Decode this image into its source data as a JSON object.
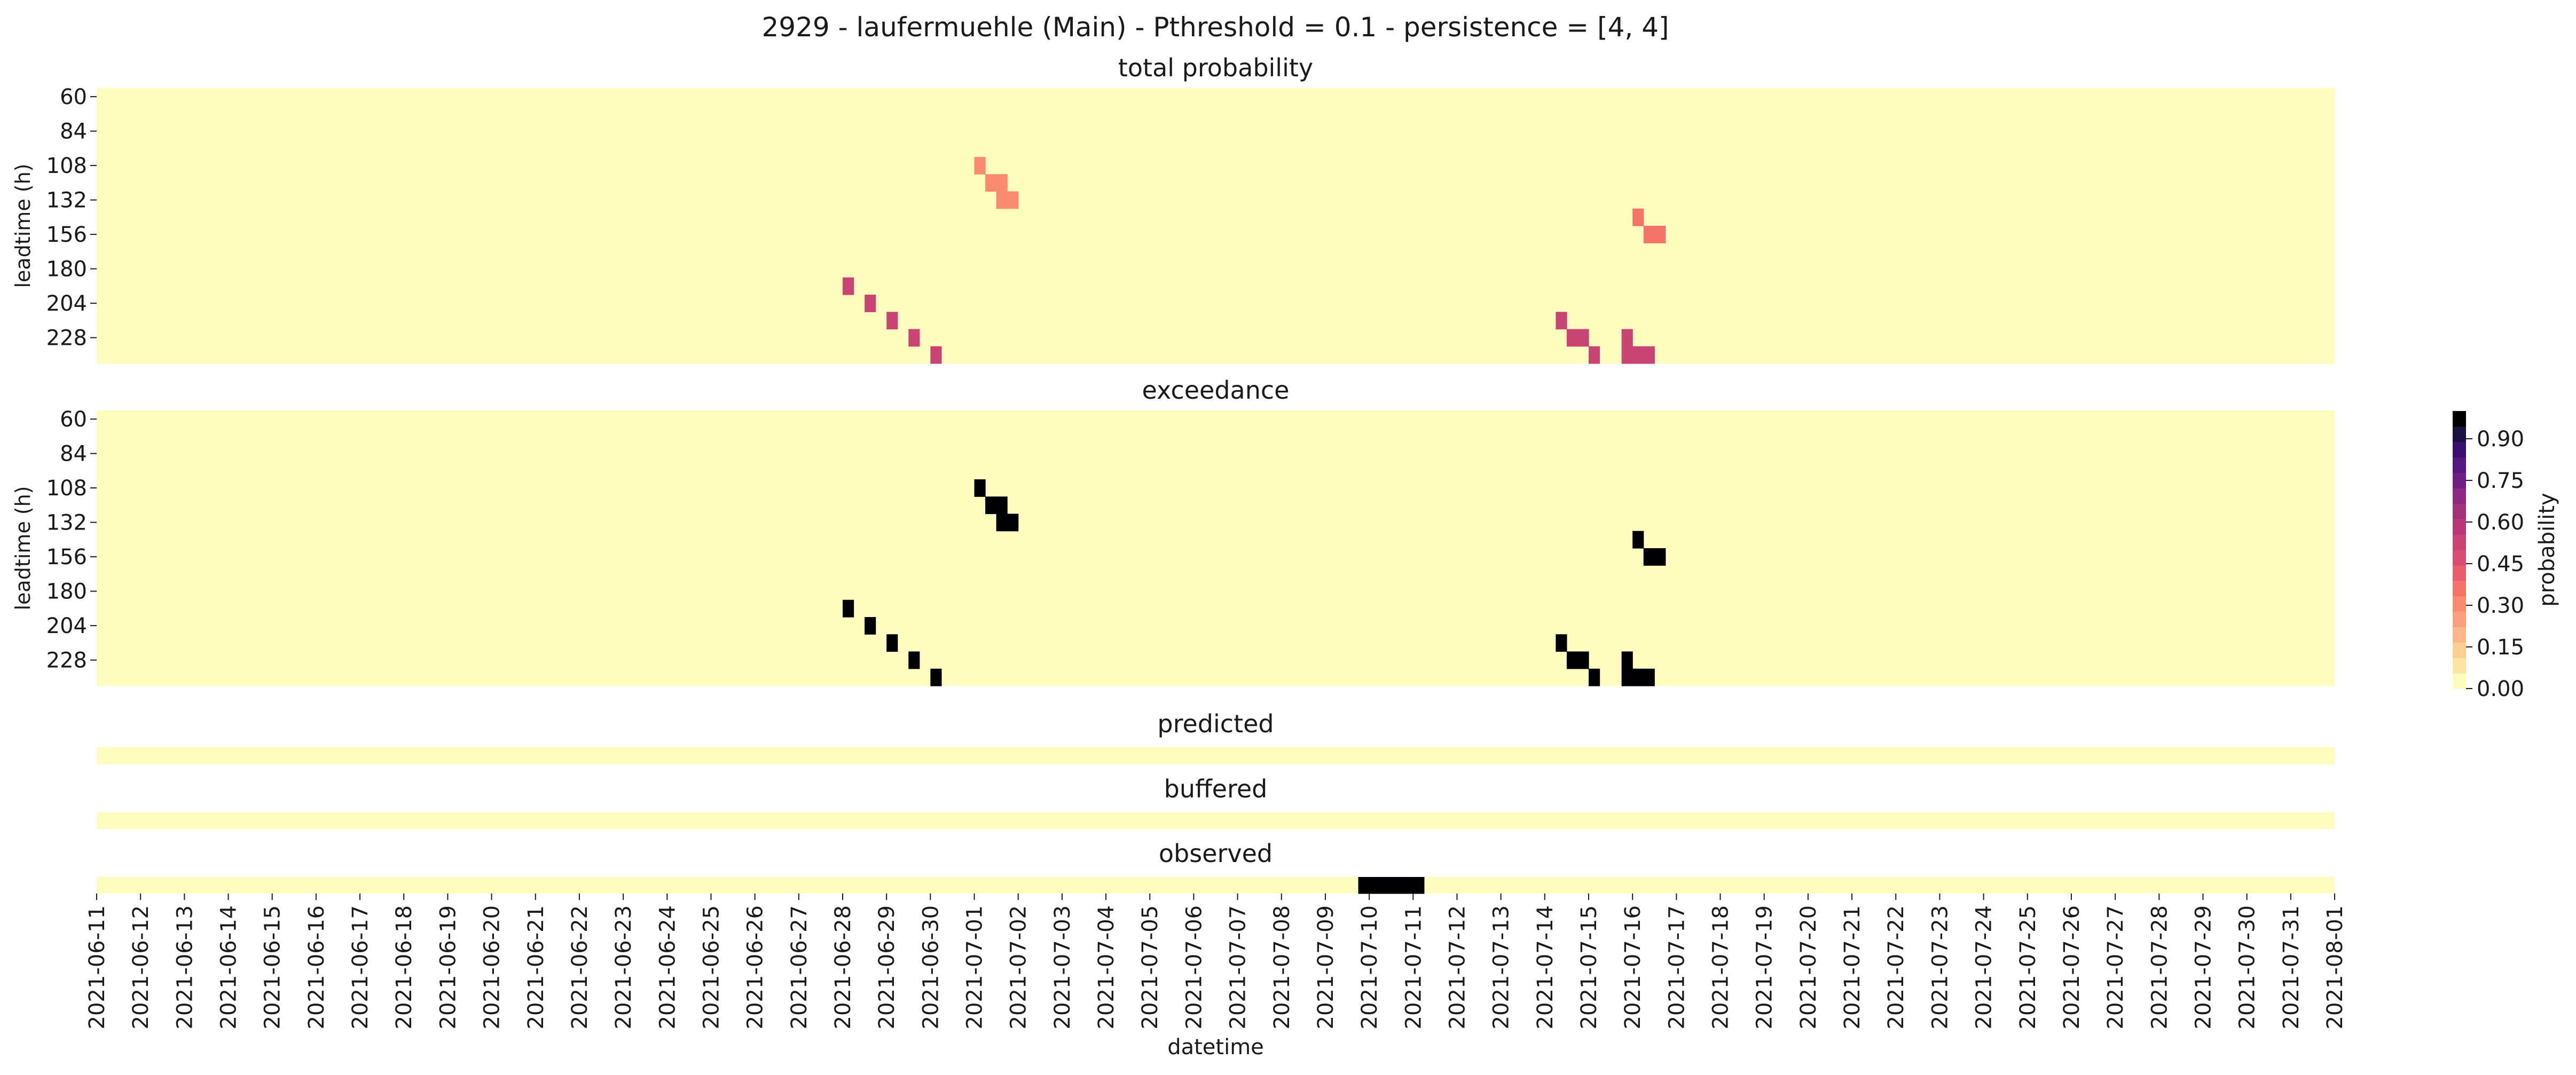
{
  "title": "2929 - laufermuehle (Main) - Pthreshold = 0.1 - persistence = [4, 4]",
  "chart_data": [
    {
      "type": "heatmap",
      "title": "total probability",
      "ylabel": "leadtime (h)",
      "yticks": [
        60,
        84,
        108,
        132,
        156,
        180,
        204,
        228
      ],
      "leadtimes": [
        60,
        72,
        84,
        96,
        108,
        120,
        132,
        144,
        156,
        168,
        180,
        192,
        204,
        216,
        228,
        240
      ],
      "background_value": 0.0,
      "cells": [
        {
          "date": "2021-06-25 00:00",
          "leadtime": 96,
          "value": 0.05
        },
        {
          "date": "2021-06-25 18:00",
          "leadtime": 84,
          "value": 0.05
        },
        {
          "date": "2021-06-26 12:00",
          "leadtime": 72,
          "value": 0.05
        },
        {
          "date": "2021-06-28 00:00",
          "leadtime": 192,
          "value": 0.55
        },
        {
          "date": "2021-06-28 12:00",
          "leadtime": 204,
          "value": 0.55
        },
        {
          "date": "2021-06-29 00:00",
          "leadtime": 216,
          "value": 0.55
        },
        {
          "date": "2021-06-29 12:00",
          "leadtime": 228,
          "value": 0.55
        },
        {
          "date": "2021-06-30 00:00",
          "leadtime": 240,
          "value": 0.55
        },
        {
          "date": "2021-07-01 00:00",
          "leadtime": 108,
          "value": 0.35
        },
        {
          "date": "2021-07-01 06:00",
          "leadtime": 120,
          "value": 0.35
        },
        {
          "date": "2021-07-01 12:00",
          "leadtime": 120,
          "value": 0.35
        },
        {
          "date": "2021-07-01 12:00",
          "leadtime": 132,
          "value": 0.35
        },
        {
          "date": "2021-07-01 18:00",
          "leadtime": 132,
          "value": 0.35
        },
        {
          "date": "2021-07-09 18:00",
          "leadtime": 96,
          "value": 0.05
        },
        {
          "date": "2021-07-10 00:00",
          "leadtime": 84,
          "value": 0.05
        },
        {
          "date": "2021-07-10 06:00",
          "leadtime": 84,
          "value": 0.05
        },
        {
          "date": "2021-07-10 00:00",
          "leadtime": 108,
          "value": 0.05
        },
        {
          "date": "2021-07-10 06:00",
          "leadtime": 96,
          "value": 0.05
        },
        {
          "date": "2021-07-10 12:00",
          "leadtime": 108,
          "value": 0.05
        },
        {
          "date": "2021-07-10 18:00",
          "leadtime": 108,
          "value": 0.05
        },
        {
          "date": "2021-07-10 00:00",
          "leadtime": 120,
          "value": 0.05
        },
        {
          "date": "2021-07-10 06:00",
          "leadtime": 120,
          "value": 0.05
        },
        {
          "date": "2021-07-10 12:00",
          "leadtime": 132,
          "value": 0.05
        },
        {
          "date": "2021-07-15 00:00",
          "leadtime": 96,
          "value": 0.05
        },
        {
          "date": "2021-07-15 06:00",
          "leadtime": 96,
          "value": 0.05
        },
        {
          "date": "2021-07-15 00:00",
          "leadtime": 108,
          "value": 0.05
        },
        {
          "date": "2021-07-15 06:00",
          "leadtime": 108,
          "value": 0.05
        },
        {
          "date": "2021-07-15 12:00",
          "leadtime": 108,
          "value": 0.05
        },
        {
          "date": "2021-07-15 06:00",
          "leadtime": 120,
          "value": 0.05
        },
        {
          "date": "2021-07-15 12:00",
          "leadtime": 132,
          "value": 0.05
        },
        {
          "date": "2021-07-15 18:00",
          "leadtime": 132,
          "value": 0.05
        },
        {
          "date": "2021-07-16 00:00",
          "leadtime": 144,
          "value": 0.4
        },
        {
          "date": "2021-07-16 06:00",
          "leadtime": 156,
          "value": 0.4
        },
        {
          "date": "2021-07-16 12:00",
          "leadtime": 156,
          "value": 0.4
        },
        {
          "date": "2021-07-14 18:00",
          "leadtime": 192,
          "value": 0.05
        },
        {
          "date": "2021-07-15 00:00",
          "leadtime": 204,
          "value": 0.05
        },
        {
          "date": "2021-07-15 06:00",
          "leadtime": 204,
          "value": 0.05
        },
        {
          "date": "2021-07-14 06:00",
          "leadtime": 216,
          "value": 0.55
        },
        {
          "date": "2021-07-14 12:00",
          "leadtime": 228,
          "value": 0.55
        },
        {
          "date": "2021-07-14 18:00",
          "leadtime": 228,
          "value": 0.55
        },
        {
          "date": "2021-07-15 00:00",
          "leadtime": 240,
          "value": 0.55
        },
        {
          "date": "2021-07-15 18:00",
          "leadtime": 228,
          "value": 0.55
        },
        {
          "date": "2021-07-15 18:00",
          "leadtime": 240,
          "value": 0.55
        },
        {
          "date": "2021-07-16 00:00",
          "leadtime": 240,
          "value": 0.55
        },
        {
          "date": "2021-07-16 06:00",
          "leadtime": 240,
          "value": 0.55
        }
      ]
    },
    {
      "type": "heatmap",
      "title": "exceedance",
      "ylabel": "leadtime (h)",
      "yticks": [
        60,
        84,
        108,
        132,
        156,
        180,
        204,
        228
      ],
      "leadtimes": [
        60,
        72,
        84,
        96,
        108,
        120,
        132,
        144,
        156,
        168,
        180,
        192,
        204,
        216,
        228,
        240
      ],
      "background_value": 0.0,
      "cells": [
        {
          "date": "2021-06-28 00:00",
          "leadtime": 192,
          "value": 1
        },
        {
          "date": "2021-06-28 12:00",
          "leadtime": 204,
          "value": 1
        },
        {
          "date": "2021-06-29 00:00",
          "leadtime": 216,
          "value": 1
        },
        {
          "date": "2021-06-29 12:00",
          "leadtime": 228,
          "value": 1
        },
        {
          "date": "2021-06-30 00:00",
          "leadtime": 240,
          "value": 1
        },
        {
          "date": "2021-07-01 00:00",
          "leadtime": 108,
          "value": 1
        },
        {
          "date": "2021-07-01 06:00",
          "leadtime": 120,
          "value": 1
        },
        {
          "date": "2021-07-01 12:00",
          "leadtime": 120,
          "value": 1
        },
        {
          "date": "2021-07-01 12:00",
          "leadtime": 132,
          "value": 1
        },
        {
          "date": "2021-07-01 18:00",
          "leadtime": 132,
          "value": 1
        },
        {
          "date": "2021-07-16 00:00",
          "leadtime": 144,
          "value": 1
        },
        {
          "date": "2021-07-16 06:00",
          "leadtime": 156,
          "value": 1
        },
        {
          "date": "2021-07-16 12:00",
          "leadtime": 156,
          "value": 1
        },
        {
          "date": "2021-07-14 06:00",
          "leadtime": 216,
          "value": 1
        },
        {
          "date": "2021-07-14 12:00",
          "leadtime": 228,
          "value": 1
        },
        {
          "date": "2021-07-14 18:00",
          "leadtime": 228,
          "value": 1
        },
        {
          "date": "2021-07-15 00:00",
          "leadtime": 240,
          "value": 1
        },
        {
          "date": "2021-07-15 18:00",
          "leadtime": 228,
          "value": 1
        },
        {
          "date": "2021-07-15 18:00",
          "leadtime": 240,
          "value": 1
        },
        {
          "date": "2021-07-16 00:00",
          "leadtime": 240,
          "value": 1
        },
        {
          "date": "2021-07-16 06:00",
          "leadtime": 240,
          "value": 1
        }
      ]
    },
    {
      "type": "heatmap",
      "title": "predicted",
      "background_value": 0.0,
      "cells": []
    },
    {
      "type": "heatmap",
      "title": "buffered",
      "background_value": 0.0,
      "cells": []
    },
    {
      "type": "heatmap",
      "title": "observed",
      "xlabel": "datetime",
      "background_value": 0.0,
      "cells": [
        {
          "date": "2021-07-09 18:00",
          "value": 1
        },
        {
          "date": "2021-07-10 00:00",
          "value": 1
        },
        {
          "date": "2021-07-10 06:00",
          "value": 1
        },
        {
          "date": "2021-07-10 12:00",
          "value": 1
        },
        {
          "date": "2021-07-10 18:00",
          "value": 1
        },
        {
          "date": "2021-07-11 00:00",
          "value": 1
        }
      ]
    }
  ],
  "x_axis": {
    "label": "datetime",
    "range": [
      "2021-06-11",
      "2021-08-01"
    ],
    "ticks": [
      "2021-06-11",
      "2021-06-12",
      "2021-06-13",
      "2021-06-14",
      "2021-06-15",
      "2021-06-16",
      "2021-06-17",
      "2021-06-18",
      "2021-06-19",
      "2021-06-20",
      "2021-06-21",
      "2021-06-22",
      "2021-06-23",
      "2021-06-24",
      "2021-06-25",
      "2021-06-26",
      "2021-06-27",
      "2021-06-28",
      "2021-06-29",
      "2021-06-30",
      "2021-07-01",
      "2021-07-02",
      "2021-07-03",
      "2021-07-04",
      "2021-07-05",
      "2021-07-06",
      "2021-07-07",
      "2021-07-08",
      "2021-07-09",
      "2021-07-10",
      "2021-07-11",
      "2021-07-12",
      "2021-07-13",
      "2021-07-14",
      "2021-07-15",
      "2021-07-16",
      "2021-07-17",
      "2021-07-18",
      "2021-07-19",
      "2021-07-20",
      "2021-07-21",
      "2021-07-22",
      "2021-07-23",
      "2021-07-24",
      "2021-07-25",
      "2021-07-26",
      "2021-07-27",
      "2021-07-28",
      "2021-07-29",
      "2021-07-30",
      "2021-07-31",
      "2021-08-01"
    ]
  },
  "colorbar": {
    "label": "probability",
    "ticks": [
      "0.00",
      "0.15",
      "0.30",
      "0.45",
      "0.60",
      "0.75",
      "0.90"
    ],
    "range": [
      0,
      1
    ],
    "colors": [
      "#fcfdbf",
      "#fde5a1",
      "#fecf92",
      "#feb78a",
      "#fd9f7c",
      "#fa8a70",
      "#f47469",
      "#e95e6b",
      "#d94d70",
      "#c94475",
      "#b73779",
      "#a4317c",
      "#8c2981",
      "#6f1f81",
      "#561783",
      "#3b0f70",
      "#1c1044",
      "#000004"
    ]
  }
}
